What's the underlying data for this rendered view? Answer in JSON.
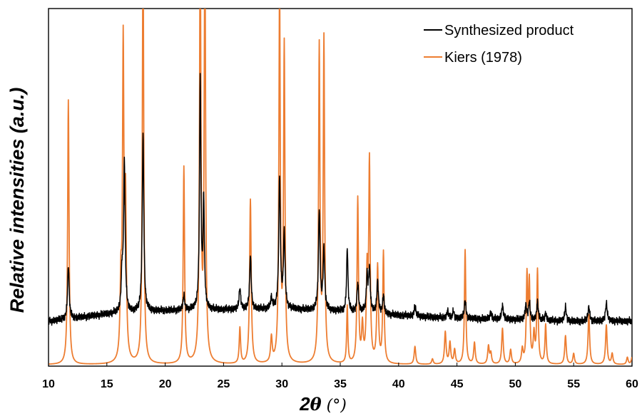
{
  "chart_data": {
    "type": "line",
    "xlabel_prefix": "2",
    "xlabel_symbol": "θ",
    "xlabel_unit": " (°)",
    "ylabel": "Relative intensities (a.u.)",
    "xlim": [
      10,
      60
    ],
    "ylim": [
      0,
      100
    ],
    "x_ticks": [
      10,
      15,
      20,
      25,
      30,
      35,
      40,
      45,
      50,
      55,
      60
    ],
    "y_ticks_shown": false,
    "grid": false,
    "legend_position": "top-right",
    "series": [
      {
        "name": "Synthesized product",
        "color": "#000000",
        "baseline": [
          [
            10,
            12.5
          ],
          [
            15,
            14.5
          ],
          [
            20,
            15.5
          ],
          [
            30,
            16
          ],
          [
            35,
            15.3
          ],
          [
            40,
            14.2
          ],
          [
            45,
            13.3
          ],
          [
            50,
            13
          ],
          [
            55,
            12.5
          ],
          [
            60,
            12.6
          ]
        ],
        "peaks": [
          [
            11.7,
            15,
            0.08
          ],
          [
            16.3,
            10,
            0.08
          ],
          [
            16.5,
            42,
            0.08
          ],
          [
            18.1,
            50,
            0.08
          ],
          [
            21.6,
            4,
            0.08
          ],
          [
            23.0,
            65,
            0.07
          ],
          [
            23.3,
            30,
            0.07
          ],
          [
            26.4,
            6,
            0.08
          ],
          [
            27.3,
            15,
            0.08
          ],
          [
            29.1,
            3,
            0.08
          ],
          [
            29.8,
            37,
            0.08
          ],
          [
            30.2,
            21,
            0.08
          ],
          [
            33.2,
            28,
            0.08
          ],
          [
            33.6,
            17,
            0.08
          ],
          [
            35.6,
            18,
            0.07
          ],
          [
            36.5,
            8,
            0.08
          ],
          [
            37.3,
            10,
            0.08
          ],
          [
            37.5,
            12,
            0.08
          ],
          [
            38.2,
            9,
            0.08
          ],
          [
            38.7,
            5,
            0.08
          ],
          [
            41.4,
            3,
            0.08
          ],
          [
            44.2,
            2,
            0.08
          ],
          [
            44.7,
            2,
            0.08
          ],
          [
            45.7,
            5,
            0.09
          ],
          [
            47.9,
            2,
            0.08
          ],
          [
            48.9,
            4,
            0.08
          ],
          [
            50.9,
            4,
            0.08
          ],
          [
            51.2,
            5,
            0.08
          ],
          [
            51.9,
            5,
            0.08
          ],
          [
            52.6,
            2,
            0.08
          ],
          [
            54.3,
            4,
            0.08
          ],
          [
            56.3,
            4,
            0.09
          ],
          [
            57.8,
            5,
            0.09
          ]
        ]
      },
      {
        "name": "Kiers (1978)",
        "color": "#ED7D31",
        "baseline": [
          [
            10,
            0.4
          ],
          [
            60,
            0.4
          ]
        ],
        "peaks": [
          [
            11.7,
            74,
            0.07
          ],
          [
            16.2,
            20,
            0.08
          ],
          [
            16.4,
            86,
            0.07
          ],
          [
            16.6,
            43,
            0.08
          ],
          [
            18.1,
            120,
            0.07
          ],
          [
            21.6,
            55,
            0.07
          ],
          [
            23.0,
            120,
            0.07
          ],
          [
            23.4,
            120,
            0.07
          ],
          [
            26.4,
            10,
            0.07
          ],
          [
            27.3,
            46,
            0.08
          ],
          [
            29.1,
            7,
            0.08
          ],
          [
            29.8,
            105,
            0.07
          ],
          [
            30.2,
            88,
            0.07
          ],
          [
            33.2,
            88,
            0.07
          ],
          [
            33.6,
            90,
            0.07
          ],
          [
            35.6,
            16,
            0.06
          ],
          [
            36.5,
            46,
            0.07
          ],
          [
            36.9,
            10,
            0.08
          ],
          [
            37.3,
            24,
            0.08
          ],
          [
            37.5,
            55,
            0.07
          ],
          [
            38.2,
            27,
            0.08
          ],
          [
            38.7,
            31,
            0.07
          ],
          [
            41.4,
            5,
            0.08
          ],
          [
            42.9,
            1.5,
            0.08
          ],
          [
            44.0,
            9,
            0.08
          ],
          [
            44.4,
            6,
            0.08
          ],
          [
            44.8,
            4,
            0.08
          ],
          [
            45.7,
            32,
            0.07
          ],
          [
            46.5,
            6,
            0.08
          ],
          [
            47.7,
            5,
            0.08
          ],
          [
            47.9,
            3,
            0.08
          ],
          [
            48.9,
            10,
            0.08
          ],
          [
            49.6,
            4,
            0.08
          ],
          [
            50.6,
            4,
            0.08
          ],
          [
            51.0,
            24,
            0.07
          ],
          [
            51.2,
            22,
            0.07
          ],
          [
            51.6,
            8,
            0.08
          ],
          [
            51.9,
            26,
            0.07
          ],
          [
            52.6,
            11,
            0.07
          ],
          [
            54.3,
            8,
            0.08
          ],
          [
            55.0,
            3,
            0.08
          ],
          [
            56.3,
            14,
            0.08
          ],
          [
            57.8,
            11,
            0.08
          ],
          [
            58.3,
            3,
            0.08
          ],
          [
            59.6,
            2,
            0.08
          ],
          [
            60.0,
            2,
            0.08
          ]
        ]
      }
    ]
  }
}
